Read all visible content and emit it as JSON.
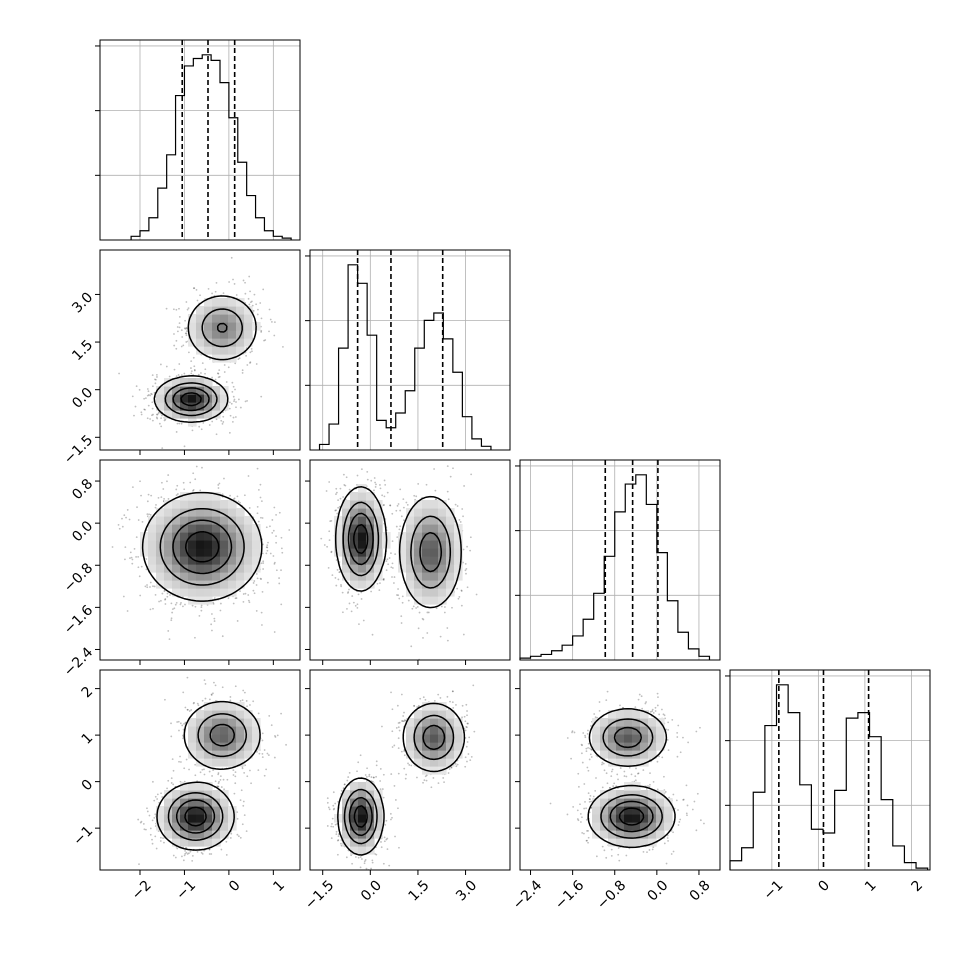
{
  "chart_data": {
    "type": "corner",
    "title": "",
    "parameters": [
      {
        "index": 0,
        "range": [
          -2.9,
          1.6
        ],
        "ticks": [
          -2,
          -1,
          0,
          1
        ],
        "tick_labels": [
          "−2",
          "−1",
          "0",
          "1"
        ]
      },
      {
        "index": 1,
        "range": [
          -1.9,
          4.4
        ],
        "ticks": [
          -1.5,
          0.0,
          1.5,
          3.0
        ],
        "tick_labels": [
          "−1.5",
          "0.0",
          "1.5",
          "3.0"
        ]
      },
      {
        "index": 2,
        "range": [
          -2.6,
          1.2
        ],
        "ticks": [
          -2.4,
          -1.6,
          -0.8,
          0.0,
          0.8
        ],
        "tick_labels": [
          "−2.4",
          "−1.6",
          "−0.8",
          "0.0",
          "0.8"
        ]
      },
      {
        "index": 3,
        "range": [
          -1.9,
          2.4
        ],
        "ticks": [
          -1,
          0,
          1,
          2
        ],
        "tick_labels": [
          "−1",
          "0",
          "1",
          "2"
        ]
      }
    ],
    "histograms": [
      {
        "param": 0,
        "quantiles": [
          -1.05,
          -0.47,
          0.13
        ],
        "bin_edges": [
          -2.2,
          -2.0,
          -1.8,
          -1.6,
          -1.4,
          -1.2,
          -1.0,
          -0.8,
          -0.6,
          -0.4,
          -0.2,
          0.0,
          0.2,
          0.4,
          0.6,
          0.8,
          1.0,
          1.2,
          1.4
        ],
        "counts": [
          0.02,
          0.05,
          0.12,
          0.28,
          0.46,
          0.78,
          0.94,
          0.98,
          1.0,
          0.97,
          0.85,
          0.66,
          0.42,
          0.24,
          0.12,
          0.05,
          0.02,
          0.01
        ]
      },
      {
        "param": 1,
        "quantiles": [
          -0.4,
          0.65,
          2.28
        ],
        "bin_edges": [
          -1.6,
          -1.3,
          -1.0,
          -0.7,
          -0.4,
          -0.1,
          0.2,
          0.5,
          0.8,
          1.1,
          1.4,
          1.7,
          2.0,
          2.3,
          2.6,
          2.9,
          3.2,
          3.5,
          3.8
        ],
        "counts": [
          0.03,
          0.14,
          0.55,
          1.0,
          0.9,
          0.62,
          0.16,
          0.12,
          0.2,
          0.32,
          0.55,
          0.7,
          0.74,
          0.6,
          0.42,
          0.18,
          0.06,
          0.02
        ]
      },
      {
        "param": 2,
        "quantiles": [
          -0.98,
          -0.46,
          0.02
        ],
        "bin_edges": [
          -2.6,
          -2.4,
          -2.2,
          -2.0,
          -1.8,
          -1.6,
          -1.4,
          -1.2,
          -1.0,
          -0.8,
          -0.6,
          -0.4,
          -0.2,
          0.0,
          0.2,
          0.4,
          0.6,
          0.8,
          1.0
        ],
        "counts": [
          0.01,
          0.02,
          0.03,
          0.05,
          0.08,
          0.13,
          0.22,
          0.36,
          0.56,
          0.8,
          0.95,
          1.0,
          0.84,
          0.58,
          0.32,
          0.15,
          0.06,
          0.02
        ]
      },
      {
        "param": 3,
        "quantiles": [
          -0.85,
          0.11,
          1.08
        ],
        "bin_edges": [
          -1.9,
          -1.65,
          -1.4,
          -1.15,
          -0.9,
          -0.65,
          -0.4,
          -0.15,
          0.1,
          0.35,
          0.6,
          0.85,
          1.1,
          1.35,
          1.6,
          1.85,
          2.1,
          2.35
        ],
        "counts": [
          0.05,
          0.12,
          0.42,
          0.78,
          1.0,
          0.85,
          0.46,
          0.22,
          0.2,
          0.43,
          0.82,
          0.85,
          0.72,
          0.38,
          0.13,
          0.04,
          0.01
        ]
      }
    ],
    "pair_panels": [
      {
        "row": 1,
        "col": 0,
        "modes": [
          {
            "cx": -0.85,
            "cy": -0.3,
            "sx": 0.4,
            "sy": 0.35,
            "w": 1.0
          },
          {
            "cx": -0.15,
            "cy": 1.95,
            "sx": 0.42,
            "sy": 0.55,
            "w": 0.62
          }
        ]
      },
      {
        "row": 2,
        "col": 0,
        "modes": [
          {
            "cx": -0.6,
            "cy": -0.45,
            "sx": 0.65,
            "sy": 0.5,
            "w": 1.0
          }
        ]
      },
      {
        "row": 2,
        "col": 1,
        "modes": [
          {
            "cx": -0.3,
            "cy": -0.3,
            "sx": 0.38,
            "sy": 0.48,
            "w": 1.0
          },
          {
            "cx": 1.9,
            "cy": -0.55,
            "sx": 0.5,
            "sy": 0.55,
            "w": 0.75
          }
        ]
      },
      {
        "row": 3,
        "col": 0,
        "modes": [
          {
            "cx": -0.75,
            "cy": -0.75,
            "sx": 0.42,
            "sy": 0.35,
            "w": 1.0
          },
          {
            "cx": -0.15,
            "cy": 1.0,
            "sx": 0.45,
            "sy": 0.38,
            "w": 0.72
          }
        ]
      },
      {
        "row": 3,
        "col": 1,
        "modes": [
          {
            "cx": -0.3,
            "cy": -0.75,
            "sx": 0.35,
            "sy": 0.4,
            "w": 1.0
          },
          {
            "cx": 2.0,
            "cy": 0.95,
            "sx": 0.5,
            "sy": 0.38,
            "w": 0.75
          }
        ]
      },
      {
        "row": 3,
        "col": 2,
        "modes": [
          {
            "cx": -0.48,
            "cy": -0.75,
            "sx": 0.4,
            "sy": 0.32,
            "w": 1.0
          },
          {
            "cx": -0.55,
            "cy": 0.95,
            "sx": 0.38,
            "sy": 0.32,
            "w": 0.75
          }
        ]
      }
    ],
    "contour_levels": [
      0.12,
      0.35,
      0.6,
      0.85
    ],
    "grid": true,
    "legend": "none"
  }
}
